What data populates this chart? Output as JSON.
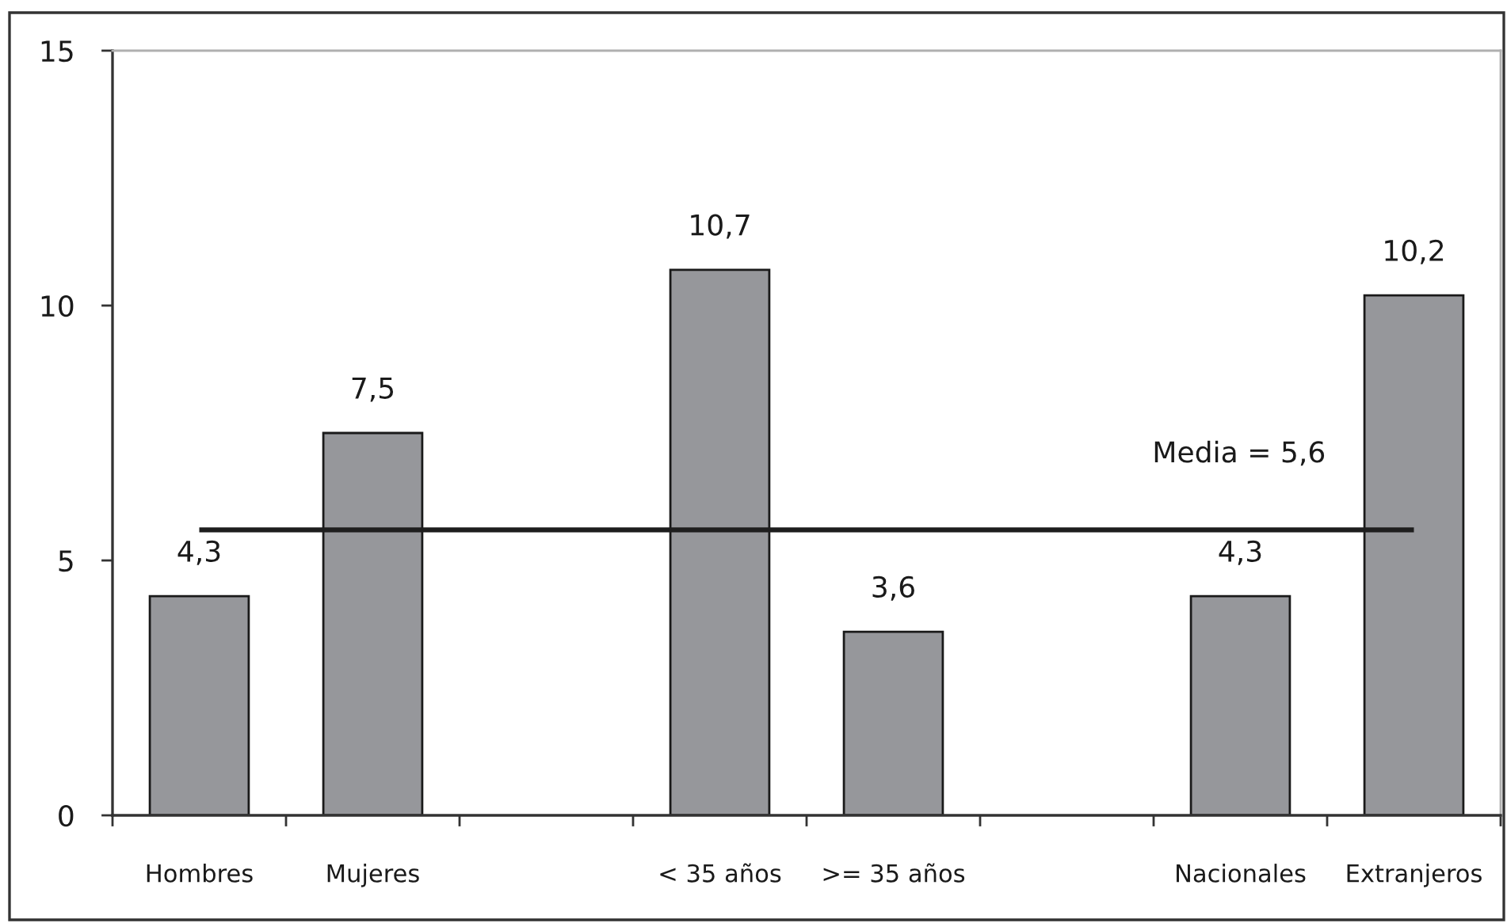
{
  "chart_data": {
    "type": "bar",
    "categories": [
      "Hombres",
      "Mujeres",
      null,
      "< 35 años",
      ">= 35 años",
      null,
      "Nacionales",
      "Extranjeros"
    ],
    "values": [
      4.3,
      7.5,
      null,
      10.7,
      3.6,
      null,
      4.3,
      10.2
    ],
    "value_labels": [
      "4,3",
      "7,5",
      null,
      "10,7",
      "3,6",
      null,
      "4,3",
      "10,2"
    ],
    "color": "#96979b",
    "ylim": [
      0,
      15
    ],
    "yticks": [
      0,
      5,
      10,
      15
    ],
    "ref_lines": [
      {
        "axis": "y",
        "value": 5.6,
        "label": "Media = 5,6",
        "color": "#1e1e1e"
      }
    ]
  }
}
